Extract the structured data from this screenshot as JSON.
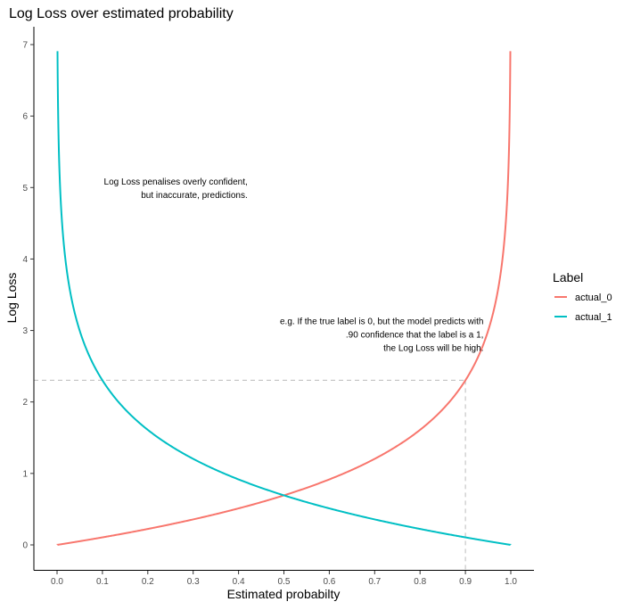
{
  "chart_data": {
    "type": "line",
    "title": "Log Loss over estimated probability",
    "xlabel": "Estimated probabilty",
    "ylabel": "Log Loss",
    "xlim": [
      0,
      1
    ],
    "ylim": [
      0,
      7
    ],
    "xticks": [
      "0.0",
      "0.1",
      "0.2",
      "0.3",
      "0.4",
      "0.5",
      "0.6",
      "0.7",
      "0.8",
      "0.9",
      "1.0"
    ],
    "yticks": [
      "0",
      "1",
      "2",
      "3",
      "4",
      "5",
      "6",
      "7"
    ],
    "grid": false,
    "legend": {
      "title": "Label",
      "placement": "right"
    },
    "series": [
      {
        "name": "actual_0",
        "color": "#F8766D",
        "formula": "-log(1-p)",
        "p_range": [
          0.001,
          0.999
        ]
      },
      {
        "name": "actual_1",
        "color": "#00BFC4",
        "formula": "-log(p)",
        "p_range": [
          0.001,
          0.999
        ]
      }
    ],
    "reference_point": {
      "x": 0.9,
      "y": 2.303,
      "color": "#BBBBBB"
    },
    "annotations": [
      {
        "lines": [
          "Log Loss penalises overly confident,",
          "but inaccurate, predictions."
        ],
        "x": 0.42,
        "y": 5.0
      },
      {
        "lines": [
          "e.g. If the true label is 0, but the model predicts with",
          ".90 confidence that the label is a 1,",
          "the Log Loss will be high."
        ],
        "x": 0.94,
        "y": 2.95
      }
    ]
  }
}
